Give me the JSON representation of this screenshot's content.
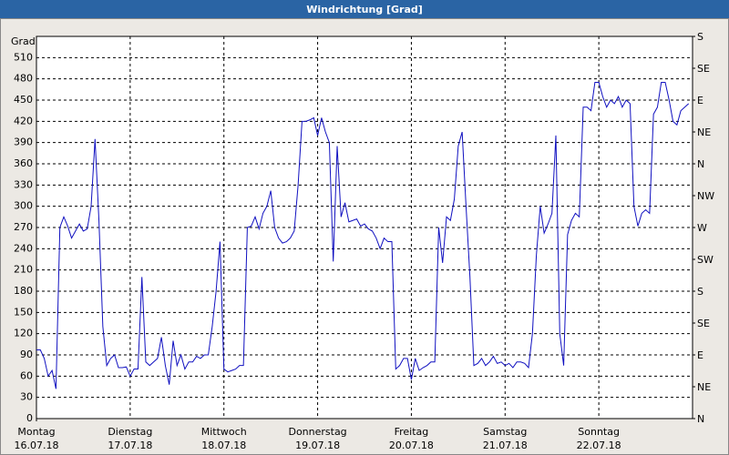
{
  "chart_data": {
    "type": "line",
    "title": "Windrichtung [Grad]",
    "y_label": "Grad",
    "xlim": [
      0,
      168
    ],
    "xticks": [
      0,
      24,
      48,
      72,
      96,
      120,
      144
    ],
    "xtick_days": [
      "Montag",
      "Dienstag",
      "Mittwoch",
      "Donnerstag",
      "Freitag",
      "Samstag",
      "Sonntag"
    ],
    "xtick_dates": [
      "16.07.18",
      "17.07.18",
      "18.07.18",
      "19.07.18",
      "20.07.18",
      "21.07.18",
      "22.07.18"
    ],
    "ylim": [
      0,
      540
    ],
    "yticks": [
      0,
      30,
      60,
      90,
      120,
      150,
      180,
      210,
      240,
      270,
      300,
      330,
      360,
      390,
      420,
      450,
      480,
      510
    ],
    "y2lim": [
      0,
      540
    ],
    "y2ticks": [
      {
        "value": 0,
        "label": "N"
      },
      {
        "value": 45,
        "label": "NE"
      },
      {
        "value": 90,
        "label": "E"
      },
      {
        "value": 135,
        "label": "SE"
      },
      {
        "value": 180,
        "label": "S"
      },
      {
        "value": 225,
        "label": "SW"
      },
      {
        "value": 270,
        "label": "W"
      },
      {
        "value": 315,
        "label": "NW"
      },
      {
        "value": 360,
        "label": "N"
      },
      {
        "value": 405,
        "label": "NE"
      },
      {
        "value": 450,
        "label": "E"
      },
      {
        "value": 495,
        "label": "SE"
      },
      {
        "value": 540,
        "label": "S"
      }
    ],
    "grid": true,
    "x": [
      0,
      1,
      2,
      3,
      4,
      5,
      6,
      7,
      8,
      9,
      10,
      11,
      12,
      13,
      14,
      15,
      16,
      17,
      18,
      19,
      20,
      21,
      22,
      23,
      24,
      25,
      26,
      27,
      28,
      29,
      30,
      31,
      32,
      33,
      34,
      35,
      36,
      37,
      38,
      39,
      40,
      41,
      42,
      43,
      44,
      45,
      46,
      47,
      48,
      49,
      50,
      51,
      52,
      53,
      54,
      55,
      56,
      57,
      58,
      59,
      60,
      61,
      62,
      63,
      64,
      65,
      66,
      67,
      68,
      69,
      70,
      71,
      72,
      73,
      74,
      75,
      76,
      77,
      78,
      79,
      80,
      81,
      82,
      83,
      84,
      85,
      86,
      87,
      88,
      89,
      90,
      91,
      92,
      93,
      94,
      95,
      96,
      97,
      98,
      99,
      100,
      101,
      102,
      103,
      104,
      105,
      106,
      107,
      108,
      109,
      110,
      111,
      112,
      113,
      114,
      115,
      116,
      117,
      118,
      119,
      120,
      121,
      122,
      123,
      124,
      125,
      126,
      127,
      128,
      129,
      130,
      131,
      132,
      133,
      134,
      135,
      136,
      137,
      138,
      139,
      140,
      141,
      142,
      143,
      144,
      145,
      146,
      147,
      148,
      149,
      150,
      151,
      152,
      153,
      154,
      155,
      156,
      157,
      158,
      159,
      160,
      161,
      162,
      163,
      164,
      165,
      166,
      167
    ],
    "series": [
      {
        "color": "#1010c0",
        "values": [
          97,
          97,
          85,
          60,
          68,
          42,
          270,
          285,
          272,
          255,
          265,
          275,
          265,
          268,
          300,
          395,
          280,
          130,
          75,
          85,
          90,
          72,
          72,
          73,
          60,
          70,
          70,
          200,
          80,
          75,
          80,
          85,
          115,
          75,
          48,
          110,
          75,
          90,
          70,
          80,
          80,
          88,
          85,
          90,
          90,
          130,
          180,
          250,
          70,
          66,
          68,
          70,
          75,
          75,
          270,
          272,
          285,
          268,
          290,
          300,
          322,
          270,
          255,
          248,
          250,
          255,
          265,
          330,
          420,
          420,
          422,
          425,
          400,
          425,
          405,
          390,
          222,
          385,
          285,
          305,
          278,
          280,
          282,
          272,
          275,
          268,
          265,
          255,
          240,
          255,
          250,
          250,
          70,
          75,
          85,
          85,
          55,
          85,
          68,
          72,
          75,
          80,
          80,
          270,
          220,
          285,
          280,
          310,
          385,
          405,
          300,
          200,
          75,
          78,
          85,
          75,
          80,
          88,
          78,
          80,
          75,
          78,
          72,
          80,
          80,
          78,
          72,
          120,
          230,
          300,
          262,
          275,
          290,
          400,
          120,
          75,
          260,
          280,
          290,
          285,
          440,
          440,
          435,
          475,
          475,
          455,
          440,
          450,
          445,
          455,
          440,
          450,
          445,
          300,
          272,
          290,
          295,
          290,
          430,
          440,
          475,
          475,
          450,
          420,
          415,
          435,
          440,
          445
        ]
      }
    ]
  }
}
